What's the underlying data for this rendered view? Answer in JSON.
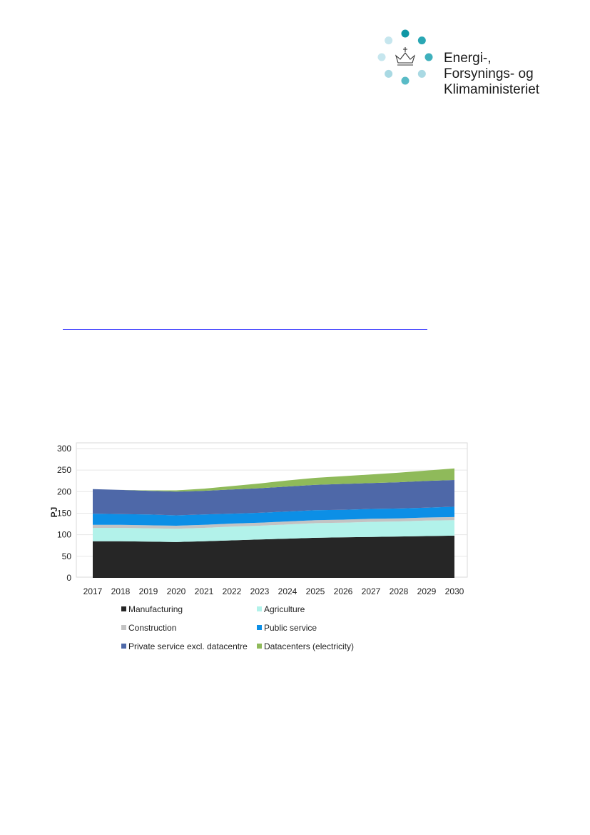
{
  "logo": {
    "lines": [
      "Energi-,",
      "Forsynings- og",
      "Klimaministeriet"
    ],
    "dot_colors": [
      "#c6e6ee",
      "#0f97a5",
      "#2aa7b4",
      "#c6e6ee",
      "#3fb0bc",
      "#a9d9e3",
      "#59bbc6",
      "#a9d9e3"
    ]
  },
  "chart_data": {
    "type": "area",
    "stacked": true,
    "x": [
      2017,
      2018,
      2019,
      2020,
      2021,
      2022,
      2023,
      2024,
      2025,
      2026,
      2027,
      2028,
      2029,
      2030
    ],
    "ylabel": "PJ",
    "ylim": [
      0,
      300
    ],
    "yticks": [
      0,
      50,
      100,
      150,
      200,
      250,
      300
    ],
    "grid": true,
    "legend_position": "bottom",
    "series": [
      {
        "name": "Manufacturing",
        "color": "#262626",
        "values": [
          85,
          85,
          84,
          83,
          85,
          87,
          89,
          91,
          93,
          94,
          95,
          96,
          97,
          98
        ]
      },
      {
        "name": "Agriculture",
        "color": "#b2f2ea",
        "values": [
          31,
          31,
          31,
          31,
          31,
          32,
          32,
          33,
          34,
          34,
          35,
          35,
          36,
          36
        ]
      },
      {
        "name": "Construction",
        "color": "#c3c3c3",
        "values": [
          7,
          7,
          7,
          7,
          7,
          7,
          7,
          7,
          7,
          7,
          7,
          7,
          7,
          7
        ]
      },
      {
        "name": "Public service",
        "color": "#0c8fe6",
        "values": [
          26,
          25,
          25,
          24,
          24,
          23,
          23,
          23,
          23,
          23,
          23,
          23,
          23,
          24
        ]
      },
      {
        "name": "Private service excl. datacentre",
        "color": "#4e68a8",
        "values": [
          57,
          56,
          55,
          55,
          55,
          56,
          57,
          58,
          59,
          60,
          60,
          61,
          62,
          62
        ]
      },
      {
        "name": "Datacenters (electricity)",
        "color": "#8fba5a",
        "values": [
          0,
          0,
          1,
          3,
          5,
          8,
          11,
          14,
          16,
          18,
          20,
          22,
          24,
          27
        ]
      }
    ]
  }
}
